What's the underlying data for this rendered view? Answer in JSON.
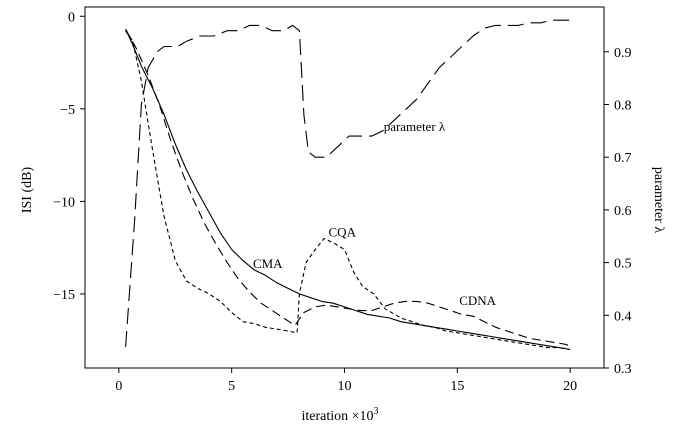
{
  "chart_data": {
    "type": "line",
    "xlabel": "iteration ×10",
    "xlabel_exp": "3",
    "ylabel": "ISI (dB)",
    "y2label": "parameter λ",
    "xlim": [
      -1.5,
      21.5
    ],
    "ylim": [
      -19,
      0.5
    ],
    "y2lim": [
      0.3,
      0.985
    ],
    "xticks": [
      0,
      5,
      10,
      15,
      20
    ],
    "yticks": [
      0,
      -5,
      -10,
      -15
    ],
    "y2ticks": [
      0.3,
      0.4,
      0.5,
      0.6,
      0.7,
      0.8,
      0.9
    ],
    "grid": false,
    "legend": "none",
    "annotations": [
      {
        "text": "CMA",
        "x": 6.6,
        "y": -13.6
      },
      {
        "text": "CQA",
        "x": 9.9,
        "y": -11.9
      },
      {
        "text": "CDNA",
        "x": 15.9,
        "y": -15.6
      },
      {
        "text": "parameter λ",
        "x": 13.1,
        "y": -6.2
      }
    ],
    "series": [
      {
        "label_ref": "CMA",
        "axis": "left",
        "dash": "",
        "points": [
          [
            0.3,
            -0.7
          ],
          [
            0.6,
            -1.5
          ],
          [
            1.0,
            -2.7
          ],
          [
            1.5,
            -3.9
          ],
          [
            2.0,
            -5.3
          ],
          [
            2.5,
            -6.9
          ],
          [
            3.0,
            -8.3
          ],
          [
            3.5,
            -9.5
          ],
          [
            4.0,
            -10.6
          ],
          [
            4.5,
            -11.7
          ],
          [
            5.0,
            -12.6
          ],
          [
            5.5,
            -13.2
          ],
          [
            6.0,
            -13.7
          ],
          [
            6.5,
            -14.0
          ],
          [
            7.0,
            -14.4
          ],
          [
            7.5,
            -14.7
          ],
          [
            8.0,
            -15.0
          ],
          [
            8.5,
            -15.2
          ],
          [
            9.0,
            -15.4
          ],
          [
            9.5,
            -15.5
          ],
          [
            10.0,
            -15.7
          ],
          [
            10.5,
            -15.9
          ],
          [
            11.0,
            -16.1
          ],
          [
            11.5,
            -16.2
          ],
          [
            12.0,
            -16.3
          ],
          [
            12.5,
            -16.5
          ],
          [
            13.0,
            -16.6
          ],
          [
            13.5,
            -16.7
          ],
          [
            14.0,
            -16.8
          ],
          [
            14.5,
            -16.9
          ],
          [
            15.0,
            -17.0
          ],
          [
            15.5,
            -17.1
          ],
          [
            16.0,
            -17.2
          ],
          [
            16.5,
            -17.3
          ],
          [
            17.0,
            -17.4
          ],
          [
            17.5,
            -17.5
          ],
          [
            18.0,
            -17.6
          ],
          [
            18.5,
            -17.7
          ],
          [
            19.0,
            -17.8
          ],
          [
            19.5,
            -17.9
          ],
          [
            20.0,
            -18.0
          ]
        ]
      },
      {
        "label_ref": "CQA",
        "axis": "left",
        "dash": "4 3",
        "points": [
          [
            0.3,
            -0.8
          ],
          [
            0.6,
            -1.3
          ],
          [
            1.0,
            -3.5
          ],
          [
            1.3,
            -5.8
          ],
          [
            1.6,
            -8.0
          ],
          [
            2.0,
            -10.8
          ],
          [
            2.5,
            -13.2
          ],
          [
            3.0,
            -14.3
          ],
          [
            3.5,
            -14.7
          ],
          [
            4.0,
            -15.0
          ],
          [
            4.5,
            -15.4
          ],
          [
            5.0,
            -16.0
          ],
          [
            5.5,
            -16.5
          ],
          [
            6.0,
            -16.6
          ],
          [
            6.5,
            -16.8
          ],
          [
            7.0,
            -16.9
          ],
          [
            7.5,
            -17.0
          ],
          [
            7.9,
            -17.1
          ],
          [
            8.0,
            -15.0
          ],
          [
            8.3,
            -13.3
          ],
          [
            8.7,
            -12.6
          ],
          [
            9.1,
            -12.0
          ],
          [
            9.6,
            -12.3
          ],
          [
            10.0,
            -12.6
          ],
          [
            10.4,
            -13.8
          ],
          [
            10.8,
            -14.6
          ],
          [
            11.3,
            -15.0
          ],
          [
            11.8,
            -15.8
          ],
          [
            12.5,
            -16.3
          ],
          [
            13.0,
            -16.5
          ],
          [
            13.5,
            -16.7
          ],
          [
            14.0,
            -16.8
          ],
          [
            14.5,
            -17.0
          ],
          [
            15.0,
            -17.1
          ],
          [
            15.5,
            -17.2
          ],
          [
            16.0,
            -17.3
          ],
          [
            16.5,
            -17.4
          ],
          [
            17.0,
            -17.5
          ],
          [
            17.5,
            -17.6
          ],
          [
            18.0,
            -17.7
          ],
          [
            18.5,
            -17.8
          ],
          [
            19.0,
            -17.9
          ],
          [
            19.5,
            -17.9
          ],
          [
            20.0,
            -18.0
          ]
        ]
      },
      {
        "label_ref": "CDNA",
        "axis": "left",
        "dash": "9 5",
        "points": [
          [
            0.3,
            -0.7
          ],
          [
            0.8,
            -1.8
          ],
          [
            1.3,
            -3.2
          ],
          [
            1.8,
            -4.8
          ],
          [
            2.3,
            -6.7
          ],
          [
            2.8,
            -8.4
          ],
          [
            3.3,
            -9.9
          ],
          [
            3.8,
            -11.2
          ],
          [
            4.3,
            -12.3
          ],
          [
            4.8,
            -13.3
          ],
          [
            5.3,
            -14.2
          ],
          [
            5.8,
            -14.9
          ],
          [
            6.3,
            -15.5
          ],
          [
            6.8,
            -15.9
          ],
          [
            7.3,
            -16.3
          ],
          [
            7.8,
            -16.7
          ],
          [
            8.2,
            -16.0
          ],
          [
            8.7,
            -15.7
          ],
          [
            9.2,
            -15.6
          ],
          [
            9.7,
            -15.7
          ],
          [
            10.2,
            -15.8
          ],
          [
            10.7,
            -15.9
          ],
          [
            11.2,
            -15.9
          ],
          [
            11.7,
            -15.7
          ],
          [
            12.2,
            -15.5
          ],
          [
            12.7,
            -15.4
          ],
          [
            13.2,
            -15.4
          ],
          [
            13.7,
            -15.5
          ],
          [
            14.2,
            -15.7
          ],
          [
            14.7,
            -15.9
          ],
          [
            15.2,
            -16.1
          ],
          [
            15.7,
            -16.2
          ],
          [
            16.2,
            -16.5
          ],
          [
            16.7,
            -16.8
          ],
          [
            17.2,
            -17.0
          ],
          [
            17.7,
            -17.2
          ],
          [
            18.2,
            -17.4
          ],
          [
            18.7,
            -17.5
          ],
          [
            19.2,
            -17.6
          ],
          [
            19.7,
            -17.7
          ],
          [
            20.0,
            -17.8
          ]
        ]
      },
      {
        "label_ref": "parameter λ",
        "axis": "right",
        "dash": "16 7",
        "points": [
          [
            0.3,
            0.34
          ],
          [
            0.7,
            0.58
          ],
          [
            1.0,
            0.8
          ],
          [
            1.3,
            0.87
          ],
          [
            1.7,
            0.9
          ],
          [
            2.0,
            0.91
          ],
          [
            2.6,
            0.91
          ],
          [
            3.0,
            0.92
          ],
          [
            3.6,
            0.93
          ],
          [
            4.2,
            0.93
          ],
          [
            4.8,
            0.94
          ],
          [
            5.3,
            0.94
          ],
          [
            5.8,
            0.95
          ],
          [
            6.3,
            0.95
          ],
          [
            6.8,
            0.94
          ],
          [
            7.3,
            0.94
          ],
          [
            7.7,
            0.95
          ],
          [
            8.0,
            0.94
          ],
          [
            8.2,
            0.78
          ],
          [
            8.4,
            0.71
          ],
          [
            8.7,
            0.7
          ],
          [
            9.2,
            0.7
          ],
          [
            9.7,
            0.72
          ],
          [
            10.2,
            0.74
          ],
          [
            10.7,
            0.74
          ],
          [
            11.2,
            0.74
          ],
          [
            11.7,
            0.75
          ],
          [
            12.2,
            0.77
          ],
          [
            12.7,
            0.79
          ],
          [
            13.2,
            0.81
          ],
          [
            13.7,
            0.84
          ],
          [
            14.2,
            0.87
          ],
          [
            14.7,
            0.89
          ],
          [
            15.2,
            0.91
          ],
          [
            15.7,
            0.93
          ],
          [
            16.2,
            0.945
          ],
          [
            16.7,
            0.95
          ],
          [
            17.2,
            0.95
          ],
          [
            17.7,
            0.95
          ],
          [
            18.2,
            0.955
          ],
          [
            18.7,
            0.955
          ],
          [
            19.2,
            0.96
          ],
          [
            19.7,
            0.96
          ],
          [
            20.0,
            0.96
          ]
        ]
      }
    ]
  }
}
